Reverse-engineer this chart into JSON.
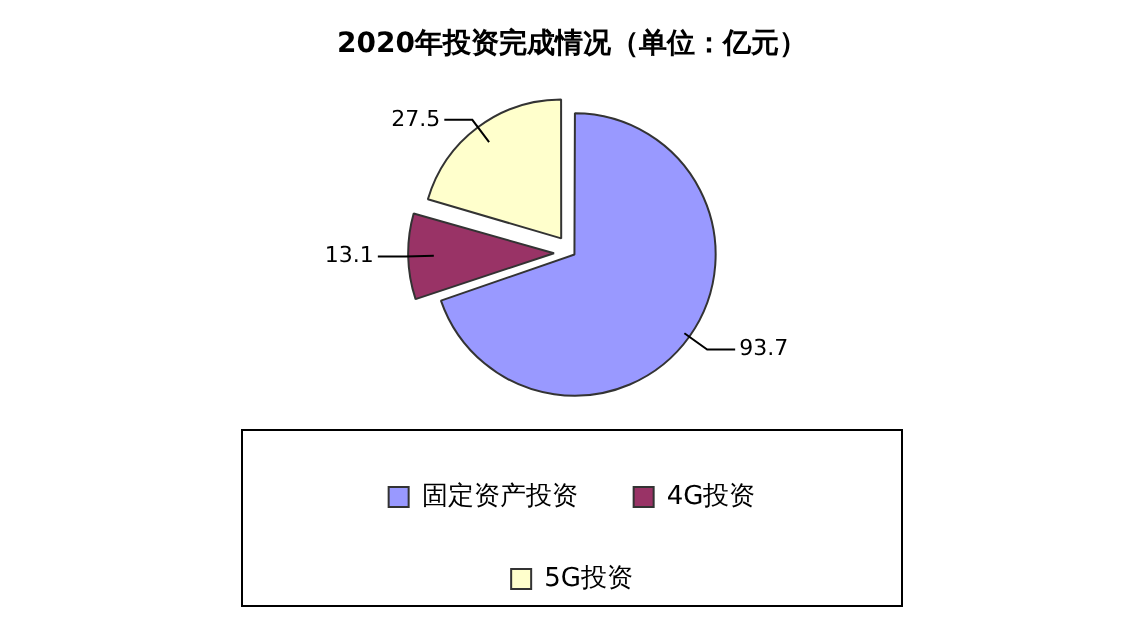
{
  "chart_data": {
    "type": "pie",
    "title": "2020年投资完成情况（单位：亿元）",
    "categories": [
      "固定资产投资",
      "4G投资",
      "5G投资"
    ],
    "values": [
      93.7,
      13.1,
      27.5
    ],
    "colors": [
      "#9999ff",
      "#993366",
      "#ffffcc"
    ],
    "data_labels": true,
    "legend": "bottom"
  }
}
